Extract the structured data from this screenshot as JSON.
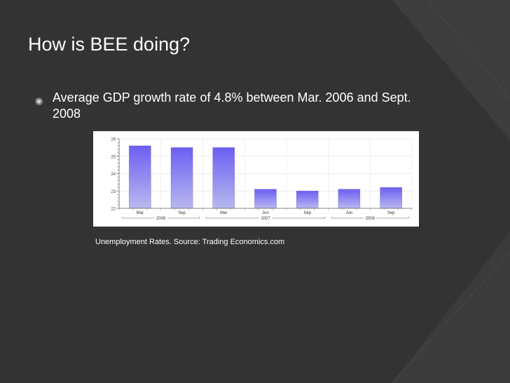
{
  "slide": {
    "title": "How is BEE doing?",
    "bullet_text": "Average GDP growth rate of 4.8% between Mar. 2006 and Sept. 2008",
    "caption": "Unemployment Rates.  Source:  Trading Economics.com"
  },
  "colors": {
    "background": "#333333",
    "bar_top": "#6c5ff2",
    "bar_bottom": "#b8b8ef",
    "text": "#ffffff"
  },
  "chart_data": {
    "type": "bar",
    "title": "",
    "categories": [
      "Mar",
      "Sep",
      "Mar",
      "Jun",
      "Sep",
      "Jun",
      "Sep"
    ],
    "groups": [
      {
        "label": "2006",
        "categories": [
          0,
          1
        ]
      },
      {
        "label": "2007",
        "categories": [
          2,
          3,
          4
        ]
      },
      {
        "label": "2008",
        "categories": [
          5,
          6
        ]
      }
    ],
    "values": [
      25.6,
      25.5,
      25.5,
      23.1,
      23.0,
      23.1,
      23.2
    ],
    "ylim": [
      22,
      26
    ],
    "yticks": [
      22,
      23,
      24,
      25,
      26
    ],
    "grid": true,
    "xlabel": "",
    "ylabel": ""
  }
}
